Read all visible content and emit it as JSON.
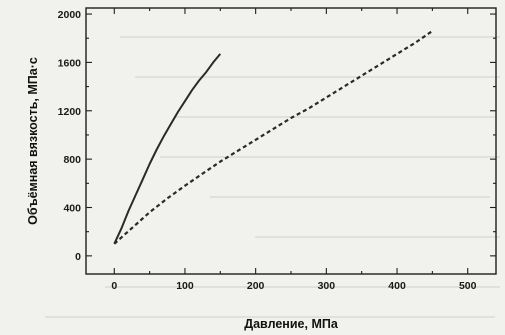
{
  "chart_data": {
    "type": "line",
    "xlabel": "Давление, МПа",
    "ylabel": "Объёмная вязкость, МПа·с",
    "xlim": [
      -40,
      540
    ],
    "ylim": [
      -150,
      2050
    ],
    "x_ticks": [
      "0",
      "100",
      "200",
      "300",
      "400",
      "500"
    ],
    "y_ticks": [
      "0",
      "400",
      "800",
      "1200",
      "1600",
      "2000"
    ],
    "x_tick_values": [
      0,
      100,
      200,
      300,
      400,
      500
    ],
    "y_tick_values": [
      0,
      400,
      800,
      1200,
      1600,
      2000
    ],
    "x_minor_step": 50,
    "y_minor_step": 200,
    "grid": false,
    "series": [
      {
        "style": "solid",
        "color": "#2a2a2a",
        "x": [
          0,
          10,
          20,
          30,
          40,
          50,
          60,
          70,
          80,
          90,
          100,
          110,
          120,
          130,
          140,
          150
        ],
        "y": [
          100,
          225,
          370,
          500,
          630,
          760,
          880,
          990,
          1090,
          1190,
          1280,
          1370,
          1450,
          1520,
          1600,
          1670
        ]
      },
      {
        "style": "dashed",
        "color": "#2a2a2a",
        "x": [
          0,
          25,
          50,
          75,
          100,
          125,
          150,
          175,
          200,
          225,
          250,
          275,
          300,
          325,
          350,
          375,
          400,
          425,
          450
        ],
        "y": [
          100,
          230,
          360,
          475,
          580,
          680,
          780,
          870,
          960,
          1050,
          1140,
          1220,
          1310,
          1400,
          1490,
          1580,
          1670,
          1760,
          1860
        ]
      }
    ]
  }
}
